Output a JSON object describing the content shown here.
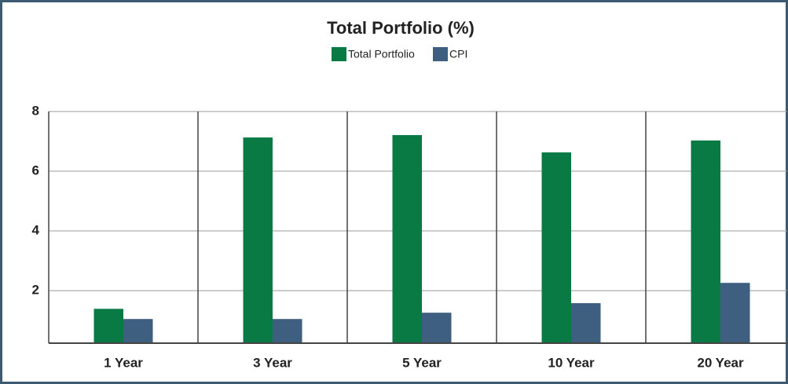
{
  "chart_data": {
    "type": "bar",
    "title": "Total Portfolio (%)",
    "categories": [
      "1 Year",
      "3 Year",
      "5 Year",
      "10 Year",
      "20 Year"
    ],
    "series": [
      {
        "name": "Total Portfolio",
        "color": "#0a7a45",
        "values": [
          1.39,
          7.13,
          7.21,
          6.63,
          7.03
        ]
      },
      {
        "name": "CPI",
        "color": "#3e5f7f",
        "values": [
          1.05,
          1.05,
          1.26,
          1.58,
          2.26
        ]
      }
    ],
    "ylim": [
      0.24,
      8
    ],
    "yticks": [
      2,
      4,
      6,
      8
    ],
    "grid": true,
    "legend": "top"
  }
}
